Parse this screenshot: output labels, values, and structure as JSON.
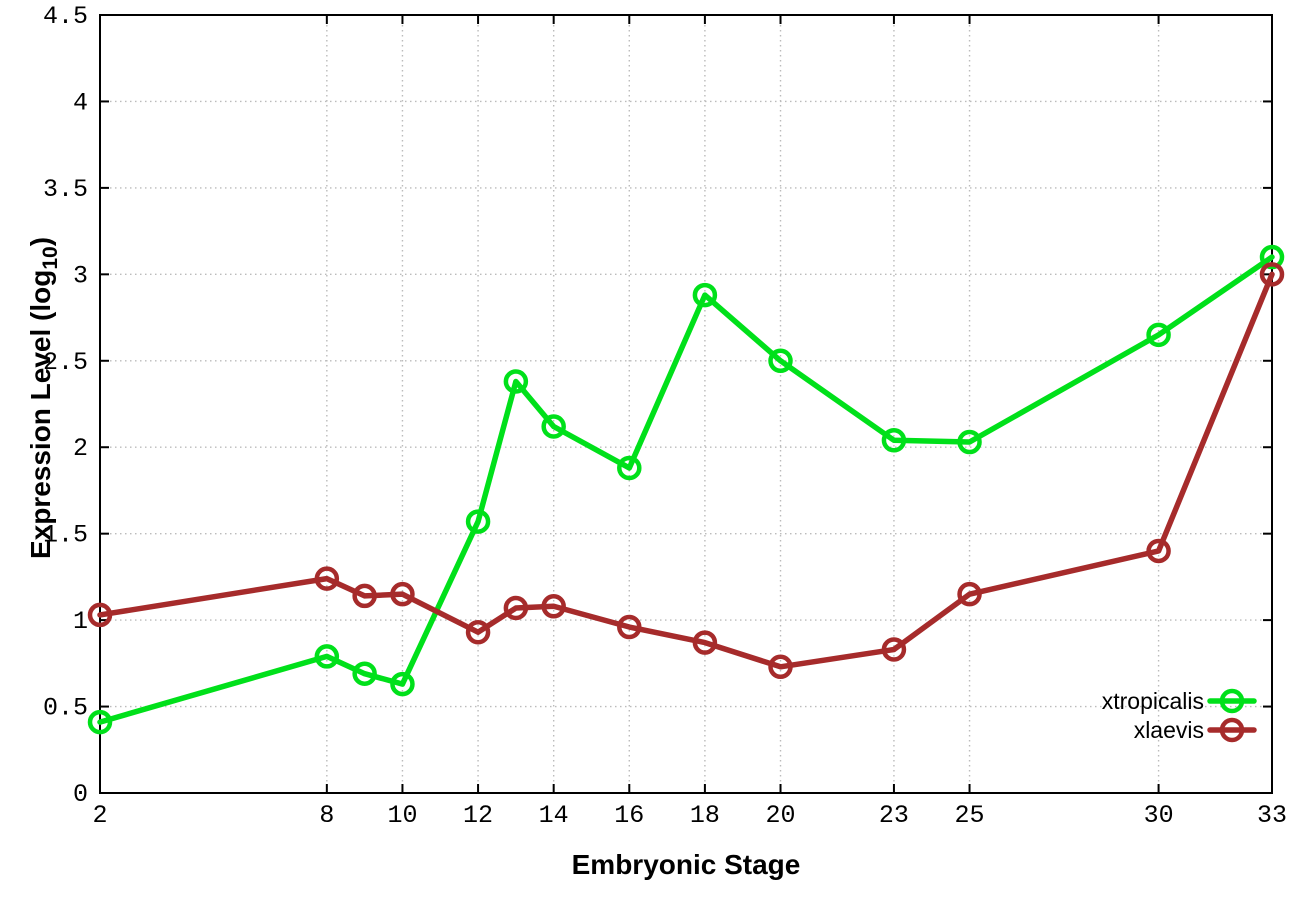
{
  "chart_data": {
    "type": "line",
    "title": "",
    "xlabel": "Embryonic Stage",
    "ylabel": {
      "pre": "Expression Level (log",
      "sub": "10",
      "post": ")"
    },
    "xlim": [
      2,
      33
    ],
    "ylim": [
      0,
      4.5
    ],
    "grid": true,
    "legend_position": "bottom-right",
    "x": [
      2,
      8,
      9,
      10,
      12,
      13,
      14,
      16,
      18,
      20,
      23,
      25,
      30,
      33
    ],
    "xticks": [
      {
        "v": 2,
        "label": "2"
      },
      {
        "v": 8,
        "label": "8"
      },
      {
        "v": 10,
        "label": "10"
      },
      {
        "v": 12,
        "label": "12"
      },
      {
        "v": 14,
        "label": "14"
      },
      {
        "v": 16,
        "label": "16"
      },
      {
        "v": 18,
        "label": "18"
      },
      {
        "v": 20,
        "label": "20"
      },
      {
        "v": 23,
        "label": "23"
      },
      {
        "v": 25,
        "label": "25"
      },
      {
        "v": 30,
        "label": "30"
      },
      {
        "v": 33,
        "label": "33"
      }
    ],
    "yticks": [
      {
        "v": 0,
        "label": "0"
      },
      {
        "v": 0.5,
        "label": "0.5"
      },
      {
        "v": 1,
        "label": "1"
      },
      {
        "v": 1.5,
        "label": "1.5"
      },
      {
        "v": 2,
        "label": "2"
      },
      {
        "v": 2.5,
        "label": "2.5"
      },
      {
        "v": 3,
        "label": "3"
      },
      {
        "v": 3.5,
        "label": "3.5"
      },
      {
        "v": 4,
        "label": "4"
      },
      {
        "v": 4.5,
        "label": "4.5"
      }
    ],
    "series": [
      {
        "name": "xtropicalis",
        "color": "#00e01a",
        "values": [
          0.41,
          0.79,
          0.69,
          0.63,
          1.57,
          2.38,
          2.12,
          1.88,
          2.88,
          2.5,
          2.04,
          2.03,
          2.65,
          3.1
        ]
      },
      {
        "name": "xlaevis",
        "color": "#a62b2b",
        "values": [
          1.03,
          1.24,
          1.14,
          1.15,
          0.93,
          1.07,
          1.08,
          0.96,
          0.87,
          0.73,
          0.83,
          1.15,
          1.4,
          3.0
        ]
      }
    ],
    "style": {
      "grid_color": "#bbbbbb",
      "border_color": "#000000",
      "background": "#ffffff"
    }
  }
}
